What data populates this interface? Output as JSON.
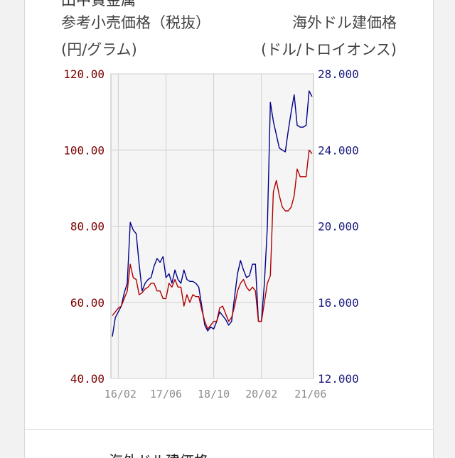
{
  "header": {
    "top_partial": "田中貴金属",
    "left_label": "参考小売価格（税抜）",
    "left_unit": "(円/グラム)",
    "right_label": "海外ドル建価格",
    "right_unit": "(ドル/トロイオンス)"
  },
  "below": {
    "next_title": "海外ドル建価格"
  },
  "colors": {
    "retail_series": "#b00000",
    "dollar_series": "#000088",
    "left_axis_text": "#7a0000",
    "right_axis_text": "#1a1a80",
    "x_axis_text": "#8c8c8c",
    "plot_bg": "#f5f5f5",
    "grid": "#cfcfcf"
  },
  "chart_data": {
    "type": "line",
    "x_tick_labels": [
      "16/02",
      "17/06",
      "18/10",
      "20/02",
      "21/06"
    ],
    "x": [
      "15/12",
      "16/01",
      "16/02",
      "16/03",
      "16/04",
      "16/05",
      "16/06",
      "16/07",
      "16/08",
      "16/09",
      "16/10",
      "16/11",
      "16/12",
      "17/01",
      "17/02",
      "17/03",
      "17/04",
      "17/05",
      "17/06",
      "17/07",
      "17/08",
      "17/09",
      "17/10",
      "17/11",
      "17/12",
      "18/01",
      "18/02",
      "18/03",
      "18/04",
      "18/05",
      "18/06",
      "18/07",
      "18/08",
      "18/09",
      "18/10",
      "18/11",
      "18/12",
      "19/01",
      "19/02",
      "19/03",
      "19/04",
      "19/05",
      "19/06",
      "19/07",
      "19/08",
      "19/09",
      "19/10",
      "19/11",
      "19/12",
      "20/01",
      "20/02",
      "20/03",
      "20/04",
      "20/05",
      "20/06",
      "20/07",
      "20/08",
      "20/09",
      "20/10",
      "20/11",
      "20/12",
      "21/01",
      "21/02",
      "21/03",
      "21/04",
      "21/05",
      "21/06",
      "21/07"
    ],
    "y_left": {
      "ylim": [
        40,
        120
      ],
      "ticks": [
        "40.00",
        "60.00",
        "80.00",
        "100.00",
        "120.00"
      ]
    },
    "y_right": {
      "ylim": [
        12,
        28
      ],
      "ticks": [
        "12.000",
        "16.000",
        "20.000",
        "24.000",
        "28.000"
      ]
    },
    "grid": true,
    "series": [
      {
        "axis": "left",
        "values": [
          56.5,
          57.5,
          58.5,
          59,
          61,
          63,
          70,
          66.5,
          66,
          62,
          62.5,
          63.5,
          64,
          65,
          65,
          63,
          63,
          61,
          61,
          65,
          64,
          66,
          64,
          64,
          59,
          62,
          60,
          62,
          61.5,
          61.5,
          58,
          55,
          53,
          54,
          55,
          55,
          58.5,
          59,
          57,
          55,
          56,
          59,
          63,
          65,
          66,
          64,
          63,
          64,
          63,
          55,
          55,
          60,
          65,
          67,
          89,
          92,
          88,
          85,
          84,
          84,
          85,
          88,
          95,
          93,
          93,
          93,
          100,
          99
        ]
      },
      {
        "axis": "right",
        "values": [
          14.2,
          15.2,
          15.5,
          15.8,
          16.5,
          17,
          20.2,
          19.8,
          19.6,
          18,
          16.6,
          17,
          17.2,
          17.3,
          17.9,
          18.3,
          18.1,
          18.4,
          17.3,
          17.5,
          17,
          17.7,
          17.2,
          17,
          17.7,
          17.2,
          17.1,
          17.1,
          17,
          16.8,
          15.8,
          14.8,
          14.5,
          14.7,
          14.6,
          15,
          15.5,
          15.3,
          15.1,
          14.8,
          15,
          16.3,
          17.5,
          18.2,
          17.7,
          17.3,
          17.4,
          18,
          18,
          15,
          15,
          17,
          20,
          26.5,
          25.5,
          24.8,
          24.1,
          24,
          23.9,
          25,
          26,
          26.9,
          25.3,
          25.2,
          25.2,
          25.3,
          27.1,
          26.8
        ]
      }
    ]
  }
}
